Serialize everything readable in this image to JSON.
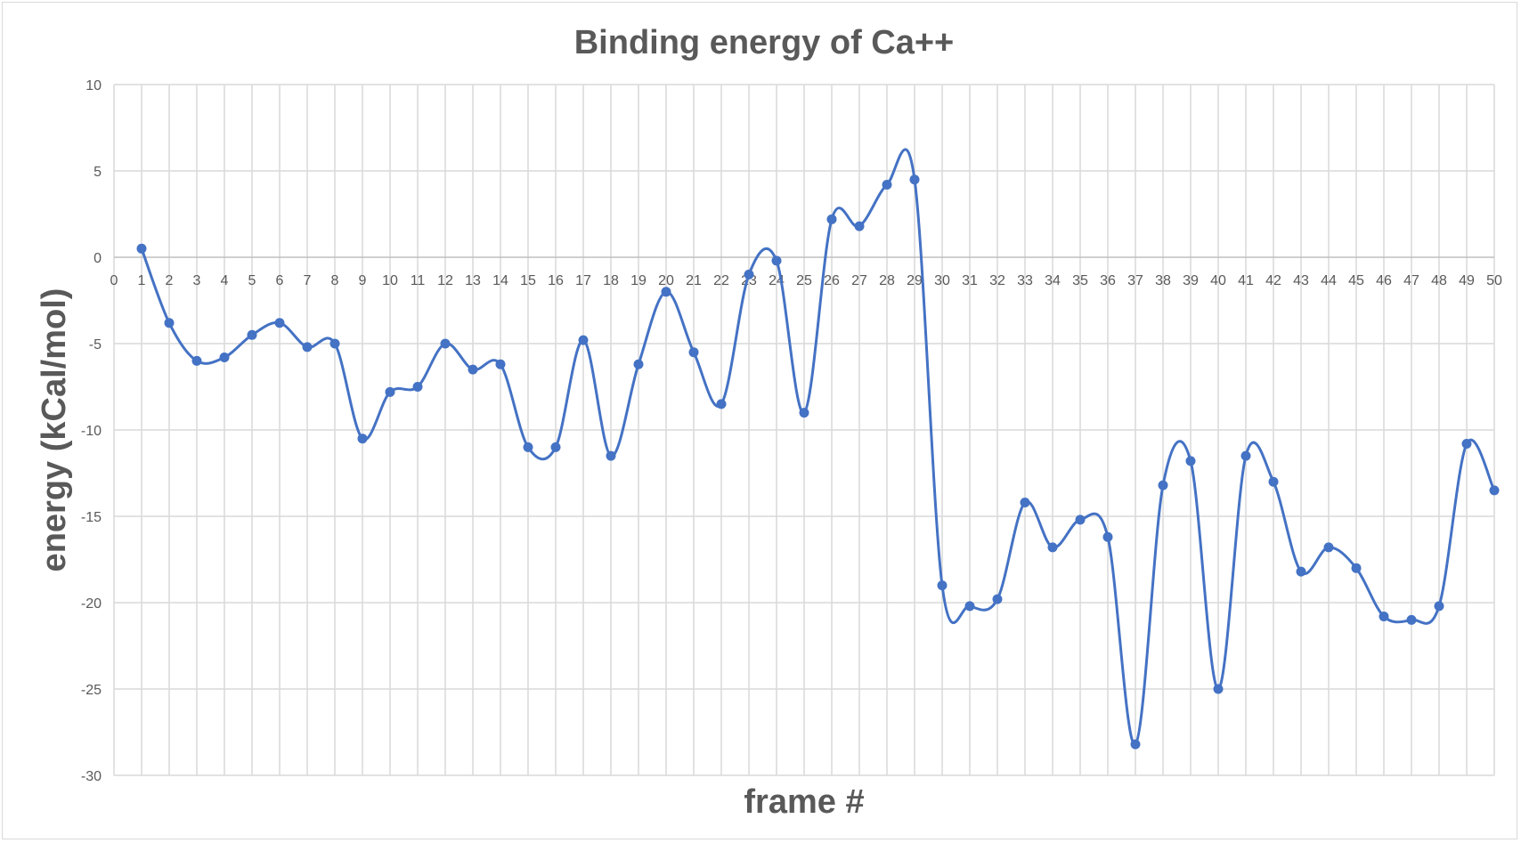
{
  "chart_data": {
    "type": "line",
    "title": "Binding energy of Ca++",
    "xlabel": "frame #",
    "ylabel": "energy (kCal/mol)",
    "xlim": [
      0,
      50
    ],
    "ylim": [
      -30,
      10
    ],
    "x_ticks": [
      0,
      1,
      2,
      3,
      4,
      5,
      6,
      7,
      8,
      9,
      10,
      11,
      12,
      13,
      14,
      15,
      16,
      17,
      18,
      19,
      20,
      21,
      22,
      23,
      24,
      25,
      26,
      27,
      28,
      29,
      30,
      31,
      32,
      33,
      34,
      35,
      36,
      37,
      38,
      39,
      40,
      41,
      42,
      43,
      44,
      45,
      46,
      47,
      48,
      49,
      50
    ],
    "y_ticks": [
      10,
      5,
      0,
      -5,
      -10,
      -15,
      -20,
      -25,
      -30
    ],
    "grid": true,
    "smooth": true,
    "legend": "none",
    "series": [
      {
        "color": "#4472c4",
        "x": [
          1,
          2,
          3,
          4,
          5,
          6,
          7,
          8,
          9,
          10,
          11,
          12,
          13,
          14,
          15,
          16,
          17,
          18,
          19,
          20,
          21,
          22,
          23,
          24,
          25,
          26,
          27,
          28,
          29,
          30,
          31,
          32,
          33,
          34,
          35,
          36,
          37,
          38,
          39,
          40,
          41,
          42,
          43,
          44,
          45,
          46,
          47,
          48,
          49,
          50
        ],
        "values": [
          0.5,
          -3.8,
          -6,
          -5.8,
          -4.5,
          -3.8,
          -5.2,
          -5,
          -10.5,
          -7.8,
          -7.5,
          -5,
          -6.5,
          -6.2,
          -11,
          -11,
          -4.8,
          -11.5,
          -6.2,
          -2,
          -5.5,
          -8.5,
          -1,
          -0.2,
          -9,
          2.2,
          1.8,
          4.2,
          4.5,
          -19,
          -20.2,
          -19.8,
          -14.2,
          -16.8,
          -15.2,
          -16.2,
          -28.2,
          -13.2,
          -11.8,
          -25,
          -11.5,
          -13,
          -18.2,
          -16.8,
          -18,
          -20.8,
          -21,
          -20.2,
          -10.8,
          -13.5
        ]
      }
    ]
  }
}
